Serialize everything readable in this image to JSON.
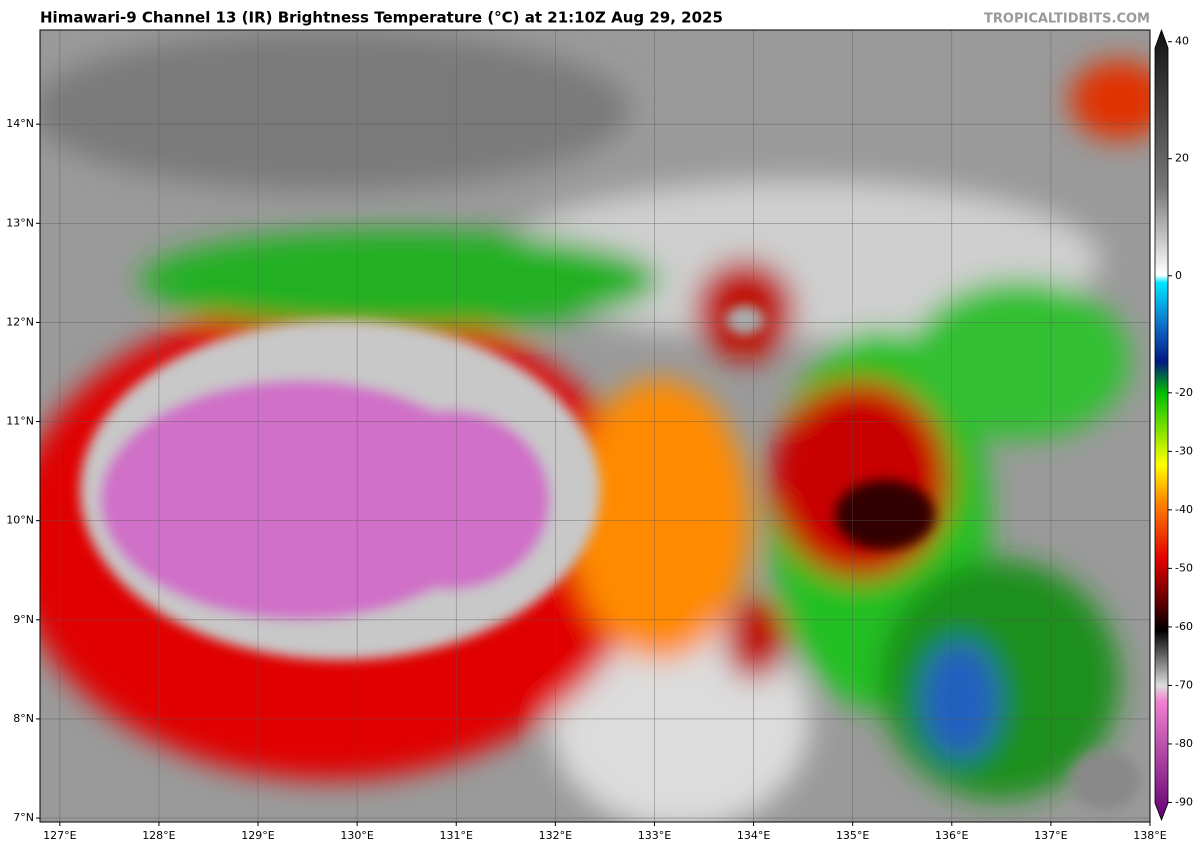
{
  "header": {
    "title": "Himawari-9 Channel 13 (IR) Brightness Temperature (°C) at 21:10Z Aug 29, 2025",
    "credit": "TROPICALTIDBITS.COM"
  },
  "map": {
    "xlim": [
      126.8,
      138
    ],
    "ylim": [
      6.96,
      14.95
    ],
    "xticks": [
      {
        "value": 127,
        "label": "127°E"
      },
      {
        "value": 128,
        "label": "128°E"
      },
      {
        "value": 129,
        "label": "129°E"
      },
      {
        "value": 130,
        "label": "130°E"
      },
      {
        "value": 131,
        "label": "131°E"
      },
      {
        "value": 132,
        "label": "132°E"
      },
      {
        "value": 133,
        "label": "133°E"
      },
      {
        "value": 134,
        "label": "134°E"
      },
      {
        "value": 135,
        "label": "135°E"
      },
      {
        "value": 136,
        "label": "136°E"
      },
      {
        "value": 137,
        "label": "137°E"
      },
      {
        "value": 138,
        "label": "138°E"
      }
    ],
    "yticks": [
      {
        "value": 7,
        "label": "7°N"
      },
      {
        "value": 8,
        "label": "8°N"
      },
      {
        "value": 9,
        "label": "9°N"
      },
      {
        "value": 10,
        "label": "10°N"
      },
      {
        "value": 11,
        "label": "11°N"
      },
      {
        "value": 12,
        "label": "12°N"
      },
      {
        "value": 13,
        "label": "13°N"
      },
      {
        "value": 14,
        "label": "14°N"
      }
    ]
  },
  "colorbar": {
    "lim": [
      -93,
      42
    ],
    "ticks": [
      40,
      20,
      0,
      -20,
      -30,
      -40,
      -50,
      -60,
      -70,
      -80,
      -90
    ]
  }
}
